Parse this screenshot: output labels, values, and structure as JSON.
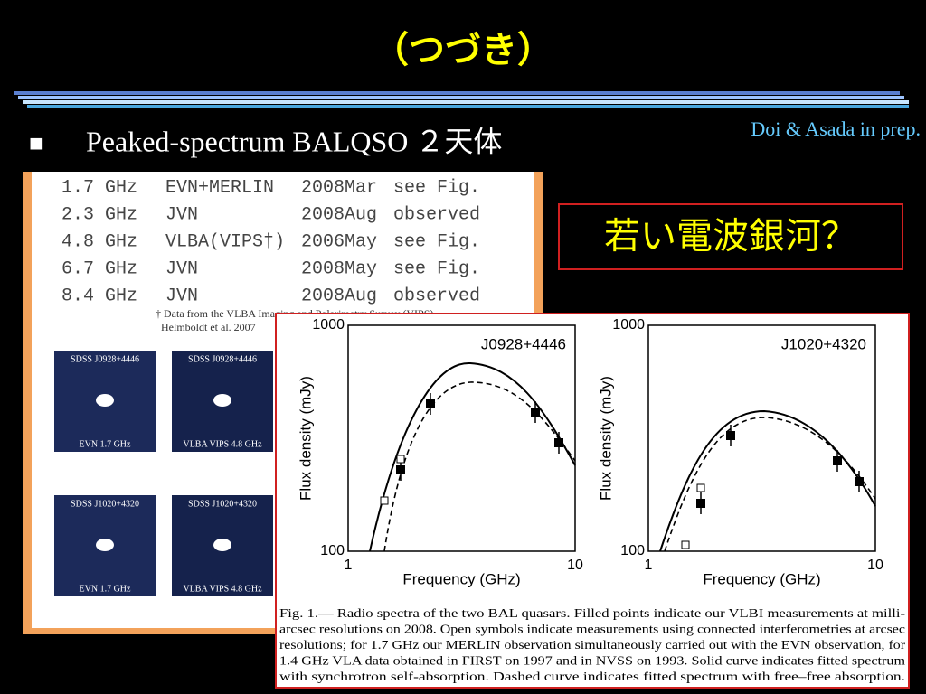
{
  "title": "（つづき）",
  "bullet": {
    "marker": "■",
    "text": "Peaked-spectrum BALQSO ２天体"
  },
  "credit": "Doi & Asada in prep.",
  "callout": "若い電波銀河？",
  "table": {
    "rows": [
      [
        "1.7 GHz",
        "EVN+MERLIN",
        "2008Mar",
        "see Fig."
      ],
      [
        "2.3 GHz",
        "JVN",
        "2008Aug",
        "observed"
      ],
      [
        "4.8 GHz",
        "VLBA(VIPS†)",
        "2006May",
        "see Fig."
      ],
      [
        "6.7 GHz",
        "JVN",
        "2008May",
        "see Fig."
      ],
      [
        "8.4 GHz",
        "JVN",
        "2008Aug",
        "observed"
      ]
    ],
    "footnote": [
      "† Data from the VLBA Imaging and Polarimetry Survey (VIPS)",
      "Helmboldt et al. 2007"
    ]
  },
  "images": [
    {
      "source": "SDSS J0928+4446",
      "label": "EVN 1.7 GHz"
    },
    {
      "source": "SDSS J0928+4446",
      "label": "VLBA VIPS 4.8 GHz"
    },
    {
      "source": "SDSS J1020+4320",
      "label": "EVN 1.7 GHz"
    },
    {
      "source": "SDSS J1020+4320",
      "label": "VLBA VIPS 4.8 GHz"
    }
  ],
  "figure": {
    "plots": [
      {
        "name": "J0928+4446",
        "ylabel": "Flux density (mJy)",
        "xlabel": "Frequency (GHz)",
        "yticks": [
          "1000",
          "100"
        ],
        "xticks": [
          "1",
          "10"
        ]
      },
      {
        "name": "J1020+4320",
        "ylabel": "Flux density (mJy)",
        "xlabel": "Frequency (GHz)",
        "yticks": [
          "1000",
          "100"
        ],
        "xticks": [
          "1",
          "10"
        ]
      }
    ],
    "caption": [
      "Fig.  1.— Radio spectra of the two BAL quasars.  Filled points indicate our VLBI measurements at milli-",
      "arcsec resolutions on 2008. Open symbols indicate measurements using connected interferometries at arcsec",
      "resolutions; for 1.7 GHz our MERLIN observation simultaneously carried out with the EVN observation, for",
      "1.4 GHz VLA data obtained in FIRST on 1997 and in NVSS on 1993. Solid curve indicates fitted spectrum",
      "with synchrotron self-absorption. Dashed curve indicates fitted spectrum with free–free absorption."
    ]
  }
}
